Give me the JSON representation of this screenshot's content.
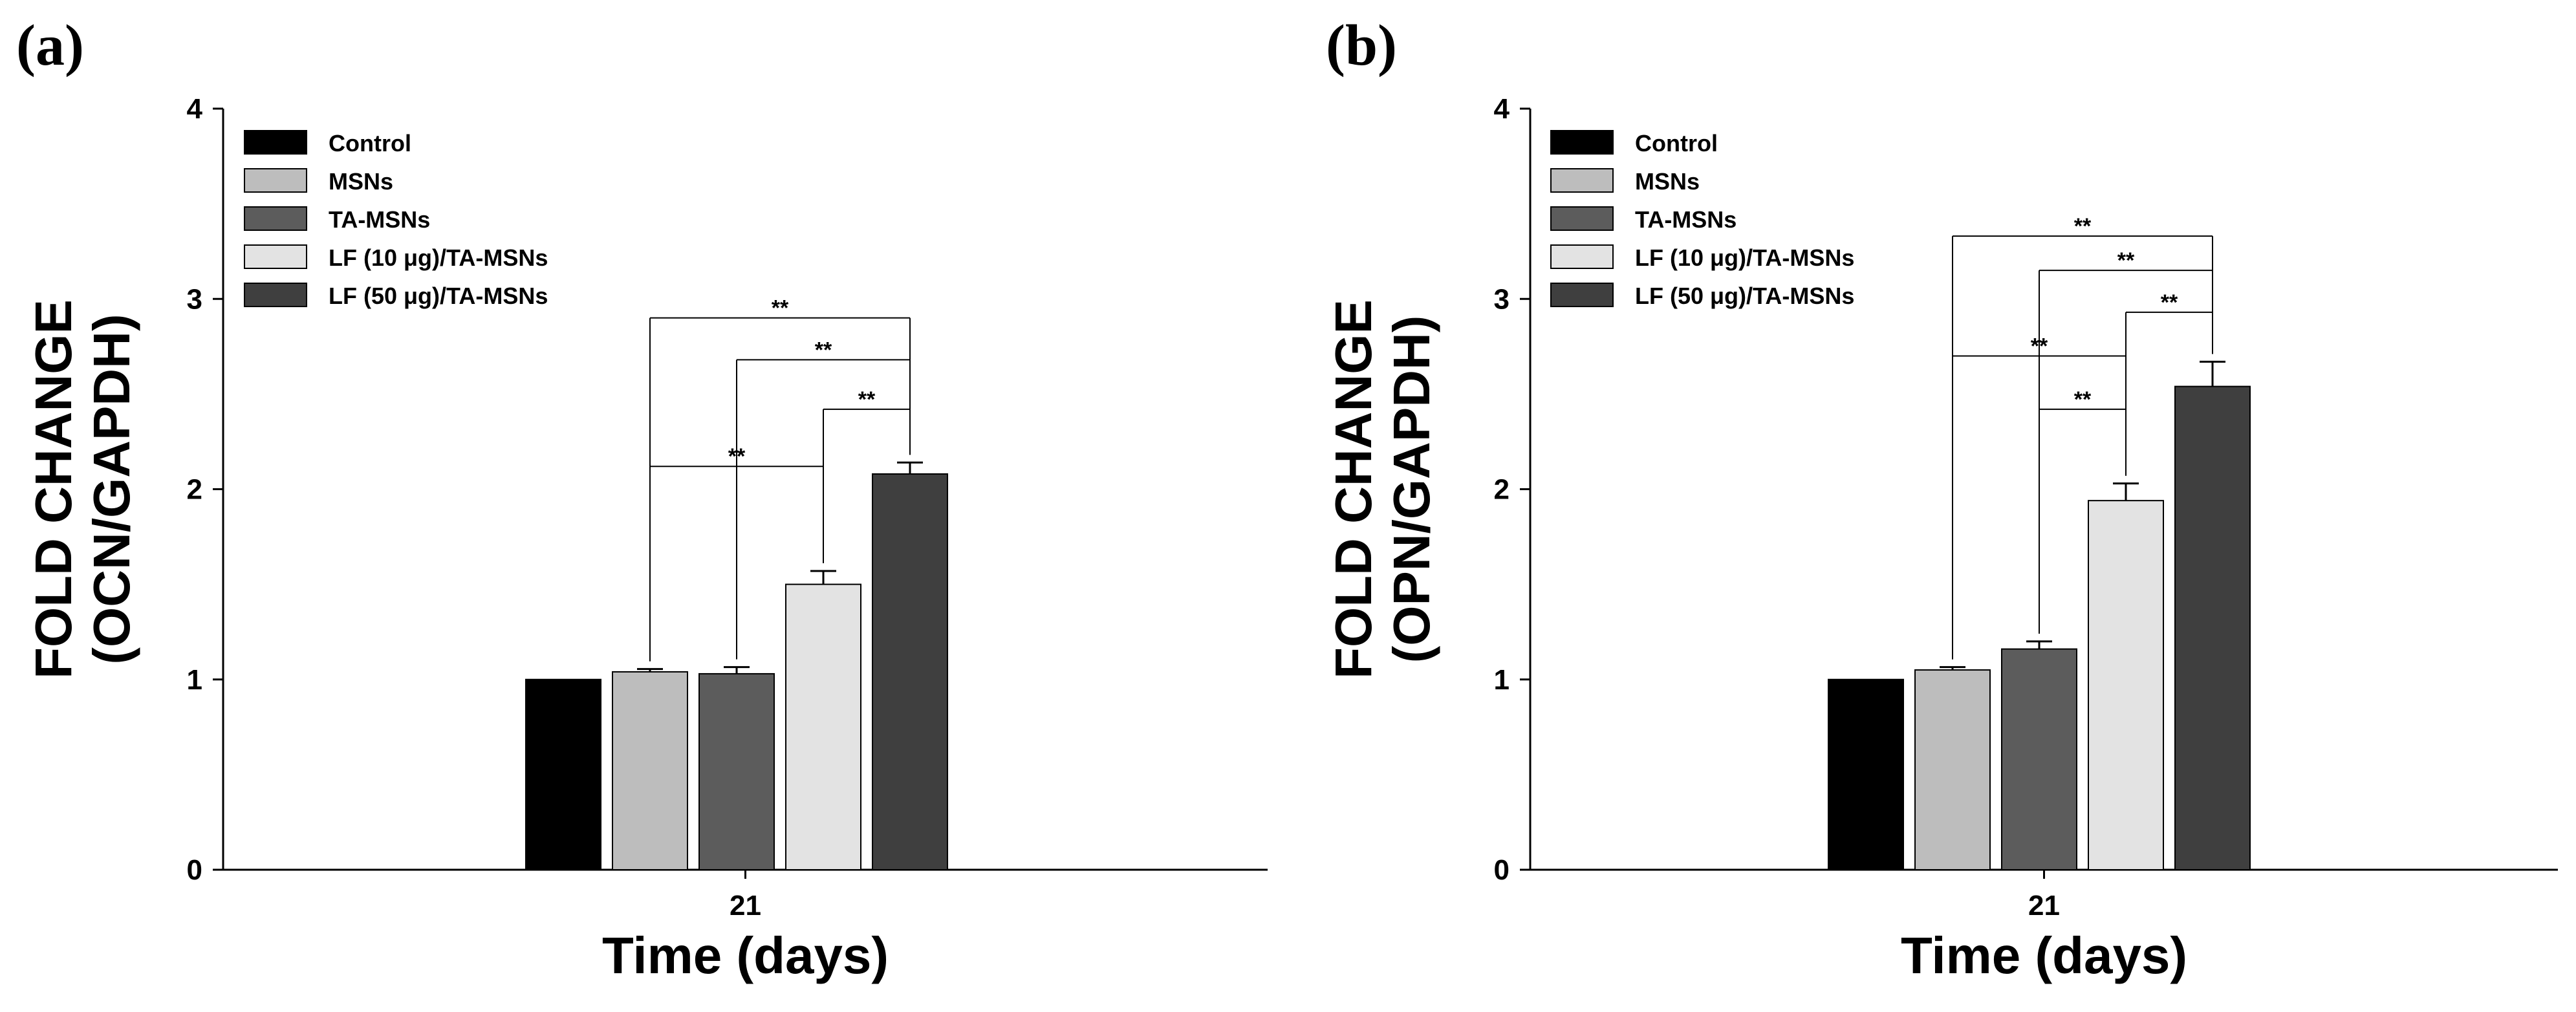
{
  "chart_data": [
    {
      "type": "bar",
      "panel_label": "(a)",
      "categories": [
        "21"
      ],
      "series": [
        {
          "name": "Control",
          "values": [
            1.0
          ],
          "error": [
            0.0
          ],
          "color": "#000000"
        },
        {
          "name": "MSNs",
          "values": [
            1.04
          ],
          "error": [
            0.015
          ],
          "color": "#bdbdbd"
        },
        {
          "name": "TA-MSNs",
          "values": [
            1.03
          ],
          "error": [
            0.035
          ],
          "color": "#5c5c5c"
        },
        {
          "name": "LF (10 μg)/TA-MSNs",
          "values": [
            1.5
          ],
          "error": [
            0.07
          ],
          "color": "#e3e3e3"
        },
        {
          "name": "LF (50 μg)/TA-MSNs",
          "values": [
            2.08
          ],
          "error": [
            0.06
          ],
          "color": "#3f3f3f"
        }
      ],
      "xlabel": "Time (days)",
      "ylabel_line1": "FOLD CHANGE",
      "ylabel_line2": "(OCN/GAPDH)",
      "ylim": [
        0,
        4
      ],
      "yticks": [
        "0",
        "1",
        "2",
        "3",
        "4"
      ],
      "legend_position": "top-left",
      "significance": [
        {
          "from": 1,
          "to": 4,
          "y": 2.9,
          "label": "**"
        },
        {
          "from": 2,
          "to": 4,
          "y": 2.68,
          "label": "**"
        },
        {
          "from": 3,
          "to": 4,
          "y": 2.42,
          "label": "**"
        },
        {
          "from": 1,
          "to": 3,
          "y": 2.12,
          "label": "**"
        }
      ]
    },
    {
      "type": "bar",
      "panel_label": "(b)",
      "categories": [
        "21"
      ],
      "series": [
        {
          "name": "Control",
          "values": [
            1.0
          ],
          "error": [
            0.0
          ],
          "color": "#000000"
        },
        {
          "name": "MSNs",
          "values": [
            1.05
          ],
          "error": [
            0.015
          ],
          "color": "#bdbdbd"
        },
        {
          "name": "TA-MSNs",
          "values": [
            1.16
          ],
          "error": [
            0.04
          ],
          "color": "#5c5c5c"
        },
        {
          "name": "LF (10 μg)/TA-MSNs",
          "values": [
            1.94
          ],
          "error": [
            0.09
          ],
          "color": "#e3e3e3"
        },
        {
          "name": "LF (50 μg)/TA-MSNs",
          "values": [
            2.54
          ],
          "error": [
            0.13
          ],
          "color": "#3f3f3f"
        }
      ],
      "xlabel": "Time (days)",
      "ylabel_line1": "FOLD CHANGE",
      "ylabel_line2": "(OPN/GAPDH)",
      "ylim": [
        0,
        4
      ],
      "yticks": [
        "0",
        "1",
        "2",
        "3",
        "4"
      ],
      "legend_position": "top-left",
      "significance": [
        {
          "from": 1,
          "to": 4,
          "y": 3.33,
          "label": "**"
        },
        {
          "from": 2,
          "to": 4,
          "y": 3.15,
          "label": "**"
        },
        {
          "from": 3,
          "to": 4,
          "y": 2.93,
          "label": "**"
        },
        {
          "from": 1,
          "to": 3,
          "y": 2.7,
          "label": "**"
        },
        {
          "from": 2,
          "to": 3,
          "y": 2.42,
          "label": "**"
        }
      ]
    }
  ]
}
